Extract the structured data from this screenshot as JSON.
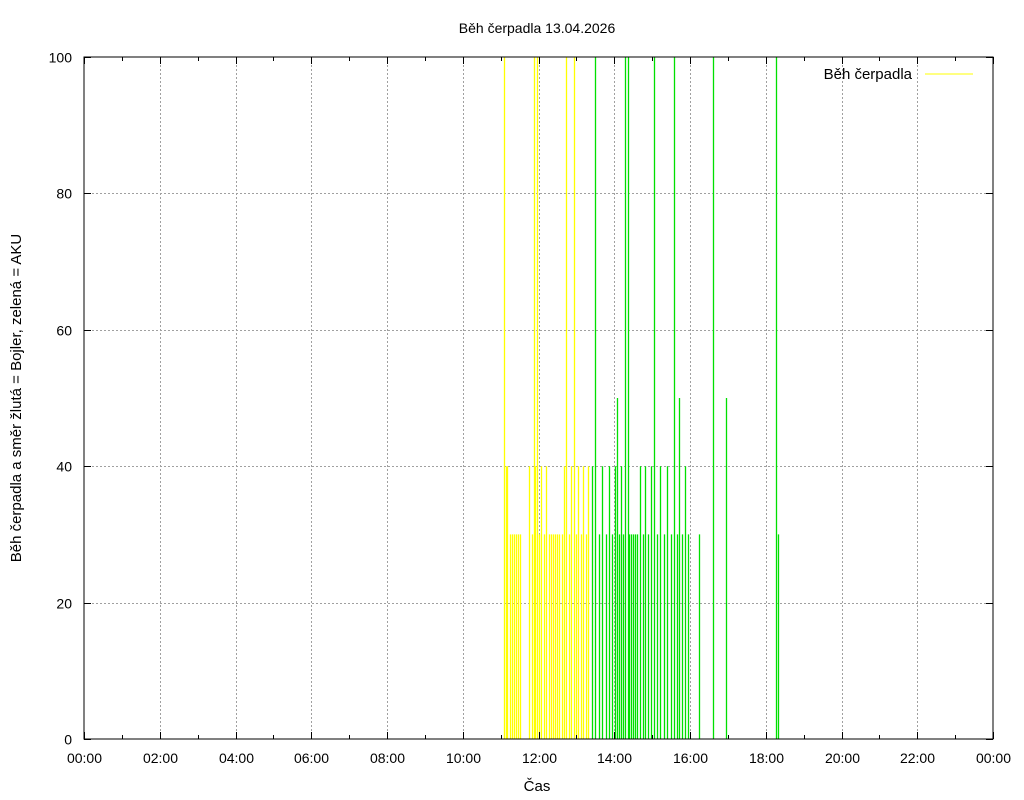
{
  "chart_data": {
    "type": "bar",
    "title": "Běh čerpadla 13.04.2026",
    "xlabel": "Čas",
    "ylabel": "Běh čerpadla a směr žlutá = Bojler, zelená = AKU",
    "xlim": [
      0,
      24
    ],
    "ylim": [
      0,
      100
    ],
    "x_unit": "hours",
    "x_ticks": [
      "00:00",
      "02:00",
      "04:00",
      "06:00",
      "08:00",
      "10:00",
      "12:00",
      "14:00",
      "16:00",
      "18:00",
      "20:00",
      "22:00",
      "00:00"
    ],
    "y_ticks": [
      "0",
      "20",
      "40",
      "60",
      "80",
      "100"
    ],
    "grid": true,
    "legend": {
      "position": "top-right",
      "entries": [
        {
          "name": "Běh čerpadla",
          "color": "#ffff00"
        }
      ]
    },
    "colors": {
      "bojler": "#ffff00",
      "aku": "#00e000"
    },
    "series": [
      {
        "direction": "Bojler",
        "color": "#ffff00",
        "points": [
          [
            11.08,
            100
          ],
          [
            11.13,
            40
          ],
          [
            11.18,
            40
          ],
          [
            11.25,
            30
          ],
          [
            11.3,
            30
          ],
          [
            11.35,
            30
          ],
          [
            11.4,
            30
          ],
          [
            11.45,
            30
          ],
          [
            11.5,
            30
          ],
          [
            11.75,
            40
          ],
          [
            11.82,
            30
          ],
          [
            11.87,
            100
          ],
          [
            11.92,
            40
          ],
          [
            11.97,
            100
          ],
          [
            12.02,
            30
          ],
          [
            12.07,
            40
          ],
          [
            12.15,
            30
          ],
          [
            12.2,
            40
          ],
          [
            12.27,
            30
          ],
          [
            12.33,
            30
          ],
          [
            12.38,
            30
          ],
          [
            12.43,
            30
          ],
          [
            12.48,
            30
          ],
          [
            12.55,
            30
          ],
          [
            12.62,
            30
          ],
          [
            12.67,
            40
          ],
          [
            12.73,
            100
          ],
          [
            12.8,
            30
          ],
          [
            12.87,
            40
          ],
          [
            12.93,
            100
          ],
          [
            13.0,
            30
          ],
          [
            13.05,
            40
          ],
          [
            13.12,
            30
          ],
          [
            13.18,
            40
          ],
          [
            13.25,
            30
          ],
          [
            13.32,
            40
          ]
        ]
      },
      {
        "direction": "AKU",
        "color": "#00e000",
        "points": [
          [
            13.42,
            40
          ],
          [
            13.5,
            100
          ],
          [
            13.6,
            30
          ],
          [
            13.68,
            40
          ],
          [
            13.77,
            30
          ],
          [
            13.85,
            40
          ],
          [
            13.93,
            30
          ],
          [
            14.03,
            40
          ],
          [
            14.08,
            50
          ],
          [
            14.13,
            30
          ],
          [
            14.18,
            40
          ],
          [
            14.23,
            30
          ],
          [
            14.28,
            100
          ],
          [
            14.35,
            100
          ],
          [
            14.4,
            30
          ],
          [
            14.45,
            30
          ],
          [
            14.5,
            30
          ],
          [
            14.55,
            30
          ],
          [
            14.6,
            30
          ],
          [
            14.67,
            40
          ],
          [
            14.75,
            30
          ],
          [
            14.82,
            40
          ],
          [
            14.9,
            30
          ],
          [
            14.97,
            40
          ],
          [
            15.05,
            100
          ],
          [
            15.13,
            30
          ],
          [
            15.22,
            40
          ],
          [
            15.32,
            30
          ],
          [
            15.4,
            40
          ],
          [
            15.5,
            30
          ],
          [
            15.57,
            100
          ],
          [
            15.65,
            30
          ],
          [
            15.72,
            50
          ],
          [
            15.8,
            30
          ],
          [
            15.88,
            40
          ],
          [
            15.95,
            30
          ],
          [
            16.25,
            30
          ],
          [
            16.6,
            100
          ],
          [
            16.95,
            50
          ],
          [
            18.27,
            100
          ],
          [
            18.32,
            30
          ]
        ]
      }
    ]
  }
}
